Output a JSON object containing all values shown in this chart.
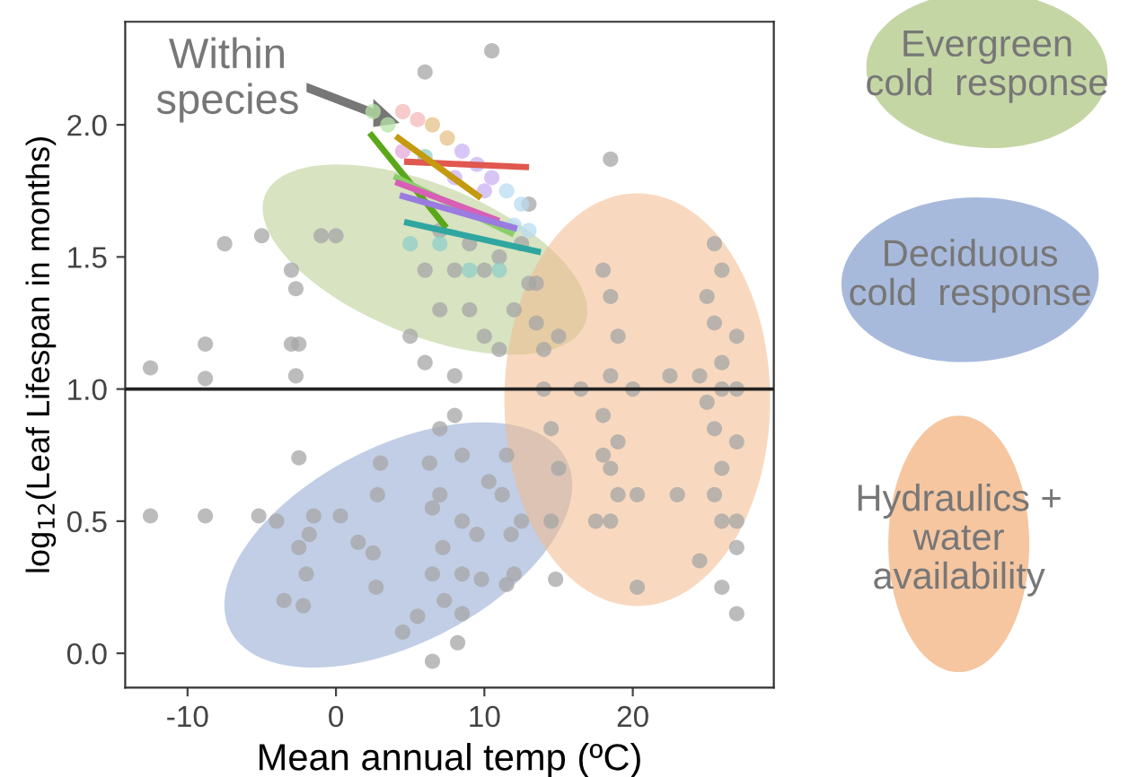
{
  "chart_data": {
    "type": "scatter",
    "xlabel": "Mean annual temp (ºC)",
    "ylabel": "log$_{12}$(Leaf Lifespan in months)",
    "xlim": [
      -14.2,
      29.5
    ],
    "ylim": [
      -0.13,
      2.39
    ],
    "xticks": [
      -10,
      0,
      10,
      20
    ],
    "yticks": [
      {
        "value": 0,
        "label": "0.0"
      },
      {
        "value": 0.5,
        "label": "0.5"
      },
      {
        "value": 1,
        "label": "1.0"
      },
      {
        "value": 1.5,
        "label": "1.5"
      },
      {
        "value": 2,
        "label": "2.0"
      }
    ],
    "grid": false,
    "ref_lines": [
      {
        "axis": "y",
        "value": 1,
        "color": "#222222"
      }
    ],
    "annotations": [
      {
        "text": "Within species",
        "x": 4.1,
        "y": 2.01
      },
      "Evergreen\ncold  response",
      "Deciduous\ncold  response",
      "Hydraulics +\nwater\navailability"
    ],
    "series": [
      {
        "color": "#a6a6a6",
        "marker": "circle",
        "x": [
          -12.5,
          -12.5,
          -8.8,
          -8.8,
          -8.8,
          -7.5,
          -5,
          -5.2,
          -4,
          -3,
          -2.7,
          -2.5,
          -2.7,
          -3,
          -2.5,
          -1,
          0,
          -3.5,
          -2.5,
          -2,
          -1.8,
          -2.2,
          -1.5,
          0.3,
          1.5,
          2.5,
          2.7,
          2.8,
          3,
          4.5,
          5.5,
          6.3,
          6.5,
          6.5,
          7,
          7,
          7.2,
          7.3,
          8.2,
          8,
          8.5,
          8.5,
          8.5,
          8.5,
          6.5,
          9.5,
          9.8,
          10.3,
          11.2,
          11.5,
          11.8,
          12,
          12.5,
          11.5,
          14.8,
          14.5,
          6,
          10.5,
          18.5,
          5,
          6,
          7,
          8,
          9,
          10,
          11,
          12,
          13,
          11,
          13,
          12.5,
          6,
          7,
          8,
          9,
          10,
          13.5,
          14,
          14.5,
          15,
          13.5,
          14,
          15,
          16.5,
          18,
          18.5,
          19,
          18.5,
          18,
          19,
          18.5,
          19,
          18,
          18.5,
          20,
          17.5,
          20.3,
          20.3,
          24.5,
          25,
          25.5,
          26,
          25.5,
          26,
          25,
          25.5,
          26,
          25.5,
          26,
          24.5,
          27,
          27,
          27,
          27,
          23,
          22.5,
          26,
          26,
          27,
          27
        ],
        "values": [
          1.08,
          0.52,
          1.04,
          1.17,
          0.52,
          1.55,
          1.58,
          0.52,
          0.5,
          1.17,
          1.05,
          0.74,
          1.38,
          1.45,
          1.17,
          1.58,
          1.58,
          0.2,
          0.4,
          0.3,
          0.45,
          0.18,
          0.52,
          0.52,
          0.42,
          0.38,
          0.25,
          0.6,
          0.72,
          0.08,
          0.14,
          0.72,
          0.55,
          0.3,
          0.85,
          0.6,
          0.4,
          0.2,
          0.04,
          0.9,
          0.75,
          0.5,
          0.3,
          0.15,
          -0.03,
          0.45,
          0.28,
          0.65,
          0.6,
          0.75,
          0.45,
          0.3,
          0.5,
          0.26,
          0.28,
          0.5,
          2.2,
          2.28,
          1.87,
          1.2,
          1.1,
          1.3,
          1.05,
          1.3,
          1.2,
          1.15,
          1.3,
          1.4,
          1.5,
          1.7,
          1.55,
          1.45,
          1.6,
          1.45,
          1.55,
          1.45,
          1.25,
          1.0,
          0.85,
          0.7,
          1.4,
          1.15,
          1.2,
          1.0,
          1.45,
          1.35,
          1.2,
          1.05,
          0.9,
          0.8,
          0.7,
          0.6,
          0.75,
          0.5,
          1.0,
          0.5,
          0.6,
          0.25,
          1.05,
          1.35,
          1.55,
          1.45,
          1.25,
          1.1,
          0.95,
          0.85,
          0.7,
          0.6,
          0.5,
          0.35,
          1.0,
          1.2,
          0.8,
          0.5,
          0.6,
          1.05,
          1.0,
          0.25,
          0.15,
          0.4
        ]
      },
      {
        "color": "#c8c8c8",
        "marker": "circle",
        "x": [
          2.5,
          3.5,
          4.5,
          5.5,
          6.5,
          7.5,
          8.5,
          9.5,
          10.5,
          11.5,
          12.5,
          4.5,
          6,
          8,
          10,
          12,
          5,
          7,
          9,
          11,
          13
        ],
        "values": [
          2.05,
          2.0,
          2.05,
          2.02,
          2.0,
          1.95,
          1.9,
          1.85,
          1.8,
          1.75,
          1.7,
          1.9,
          1.88,
          1.8,
          1.75,
          1.62,
          1.55,
          1.55,
          1.45,
          1.45,
          1.6
        ],
        "colors": [
          "#b6e3a6",
          "#b6e3a6",
          "#f4b9b9",
          "#f4b9b9",
          "#e6c28a",
          "#e6c28a",
          "#c9b3f2",
          "#c9b3f2",
          "#c9b3f2",
          "#b9dcf2",
          "#b9dcf2",
          "#e6a8d8",
          "#8fcfc8",
          "#c9b3f2",
          "#c9b3f2",
          "#b9dcf2",
          "#8fcfc8",
          "#8fcfc8",
          "#8fcfc8",
          "#8fcfc8",
          "#b9dcf2"
        ]
      },
      {
        "type": "line",
        "color": "#e0584f",
        "x": [
          4.8,
          12.8
        ],
        "values": [
          1.86,
          1.84
        ]
      },
      {
        "type": "line",
        "color": "#c49a10",
        "x": [
          4.2,
          9.6
        ],
        "values": [
          1.95,
          1.73
        ]
      },
      {
        "type": "line",
        "color": "#5aa71a",
        "x": [
          2.4,
          7.3
        ],
        "values": [
          1.96,
          1.62
        ]
      },
      {
        "type": "line",
        "color": "#8ccf6a",
        "x": [
          4.1,
          11.8
        ],
        "values": [
          1.8,
          1.59
        ]
      },
      {
        "type": "line",
        "color": "#d85fb5",
        "x": [
          4.2,
          10.8
        ],
        "values": [
          1.78,
          1.64
        ]
      },
      {
        "type": "line",
        "color": "#9a7be0",
        "x": [
          4.5,
          12.0
        ],
        "values": [
          1.73,
          1.61
        ]
      },
      {
        "type": "line",
        "color": "#2fa6a0",
        "x": [
          4.8,
          13.6
        ],
        "values": [
          1.63,
          1.52
        ]
      }
    ]
  }
}
